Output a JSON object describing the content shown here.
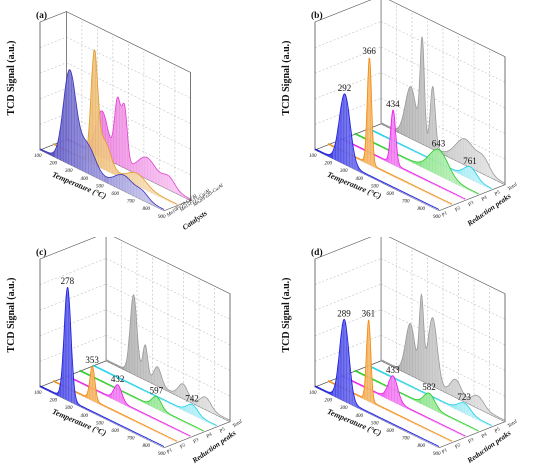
{
  "chart_data": [
    {
      "type": "area",
      "panel_label": "(a)",
      "ylabel": "TCD Signal (a.u.)",
      "xlabel": "Temperature (°C)",
      "zlabel": "Catalysts",
      "x_ticks": [
        "100",
        "200",
        "300",
        "400",
        "500",
        "600",
        "700",
        "800",
        "900"
      ],
      "lanes": [
        "Mn10Fe10-Cu/Al",
        "Mn15Fe15-Cu/Al",
        "Mn20Fe20-Cu/Al"
      ],
      "series": [
        {
          "name": "Mn10Fe10-Cu/Al",
          "color": "#3a33b8",
          "peaks": [
            {
              "x": 290,
              "h": 0.8,
              "w": 40
            },
            {
              "x": 400,
              "h": 0.25,
              "w": 55
            },
            {
              "x": 640,
              "h": 0.13,
              "w": 60
            },
            {
              "x": 760,
              "h": 0.06,
              "w": 40
            }
          ],
          "ylim_max": 1.0
        },
        {
          "name": "Mn15Fe15-Cu/Al",
          "color": "#e39a2a",
          "peaks": [
            {
              "x": 365,
              "h": 0.95,
              "w": 22
            },
            {
              "x": 430,
              "h": 0.25,
              "w": 40
            },
            {
              "x": 640,
              "h": 0.1,
              "w": 60
            }
          ],
          "ylim_max": 1.0
        },
        {
          "name": "Mn20Fe20-Cu/Al",
          "color": "#e23fd0",
          "peaks": [
            {
              "x": 330,
              "h": 0.4,
              "w": 40
            },
            {
              "x": 430,
              "h": 0.55,
              "w": 20
            },
            {
              "x": 475,
              "h": 0.5,
              "w": 18
            },
            {
              "x": 620,
              "h": 0.18,
              "w": 60
            },
            {
              "x": 760,
              "h": 0.1,
              "w": 40
            }
          ],
          "ylim_max": 1.0
        }
      ],
      "peak_labels": []
    },
    {
      "type": "area",
      "panel_label": "(b)",
      "ylabel": "TCD Signal (a.u.)",
      "xlabel": "Temperature (°C)",
      "zlabel": "Reduction peaks",
      "x_ticks": [
        "100",
        "200",
        "300",
        "400",
        "500",
        "600",
        "700",
        "800",
        "900"
      ],
      "lanes": [
        "P1",
        "P2",
        "P3",
        "P4",
        "P5",
        "Total"
      ],
      "series": [
        {
          "name": "P1",
          "color": "#1a1ae0",
          "peaks": [
            {
              "x": 292,
              "h": 0.62,
              "w": 35
            }
          ],
          "ylim_max": 1.0
        },
        {
          "name": "P2",
          "color": "#f08a0c",
          "peaks": [
            {
              "x": 366,
              "h": 0.95,
              "w": 14
            }
          ],
          "ylim_max": 1.0
        },
        {
          "name": "P3",
          "color": "#e81ae8",
          "peaks": [
            {
              "x": 434,
              "h": 0.48,
              "w": 16
            }
          ],
          "ylim_max": 1.0
        },
        {
          "name": "P4",
          "color": "#22cc22",
          "peaks": [
            {
              "x": 643,
              "h": 0.22,
              "w": 60
            }
          ],
          "ylim_max": 1.0
        },
        {
          "name": "P5",
          "color": "#1ad0e8",
          "peaks": [
            {
              "x": 761,
              "h": 0.1,
              "w": 40
            }
          ],
          "ylim_max": 1.0
        },
        {
          "name": "Total",
          "color": "#9a9a9a",
          "peaks": [
            {
              "x": 292,
              "h": 0.45,
              "w": 35
            },
            {
              "x": 366,
              "h": 0.9,
              "w": 14
            },
            {
              "x": 434,
              "h": 0.55,
              "w": 16
            },
            {
              "x": 643,
              "h": 0.22,
              "w": 60
            },
            {
              "x": 761,
              "h": 0.12,
              "w": 40
            }
          ],
          "ylim_max": 1.0
        }
      ],
      "peak_labels": [
        {
          "text": "292",
          "lane": 0,
          "x": 292
        },
        {
          "text": "366",
          "lane": 1,
          "x": 366
        },
        {
          "text": "434",
          "lane": 2,
          "x": 434
        },
        {
          "text": "643",
          "lane": 3,
          "x": 643
        },
        {
          "text": "761",
          "lane": 4,
          "x": 761
        }
      ]
    },
    {
      "type": "area",
      "panel_label": "(c)",
      "ylabel": "TCD Signal (a.u.)",
      "xlabel": "Temperature (°C)",
      "zlabel": "Reduction peaks",
      "x_ticks": [
        "100",
        "200",
        "300",
        "400",
        "500",
        "600",
        "700",
        "800",
        "900"
      ],
      "lanes": [
        "P1",
        "P2",
        "P3",
        "P4",
        "P5",
        "Total"
      ],
      "series": [
        {
          "name": "P1",
          "color": "#1a1ae0",
          "peaks": [
            {
              "x": 278,
              "h": 1.0,
              "w": 22
            }
          ],
          "ylim_max": 1.0
        },
        {
          "name": "P2",
          "color": "#f08a0c",
          "peaks": [
            {
              "x": 353,
              "h": 0.3,
              "w": 16
            }
          ],
          "ylim_max": 1.0
        },
        {
          "name": "P3",
          "color": "#e81ae8",
          "peaks": [
            {
              "x": 432,
              "h": 0.14,
              "w": 25
            }
          ],
          "ylim_max": 1.0
        },
        {
          "name": "P4",
          "color": "#22cc22",
          "peaks": [
            {
              "x": 597,
              "h": 0.1,
              "w": 30
            }
          ],
          "ylim_max": 1.0
        },
        {
          "name": "P5",
          "color": "#1ad0e8",
          "peaks": [
            {
              "x": 742,
              "h": 0.08,
              "w": 35
            }
          ],
          "ylim_max": 1.0
        },
        {
          "name": "Total",
          "color": "#9a9a9a",
          "peaks": [
            {
              "x": 278,
              "h": 0.7,
              "w": 22
            },
            {
              "x": 353,
              "h": 0.3,
              "w": 16
            },
            {
              "x": 432,
              "h": 0.16,
              "w": 25
            },
            {
              "x": 597,
              "h": 0.12,
              "w": 30
            },
            {
              "x": 742,
              "h": 0.1,
              "w": 35
            }
          ],
          "ylim_max": 1.0
        }
      ],
      "peak_labels": [
        {
          "text": "278",
          "lane": 0,
          "x": 278
        },
        {
          "text": "353",
          "lane": 1,
          "x": 353
        },
        {
          "text": "432",
          "lane": 2,
          "x": 432
        },
        {
          "text": "597",
          "lane": 3,
          "x": 597
        },
        {
          "text": "742",
          "lane": 4,
          "x": 742
        }
      ]
    },
    {
      "type": "area",
      "panel_label": "(d)",
      "ylabel": "TCD Signal (a.u.)",
      "xlabel": "Temperature (°C)",
      "zlabel": "Reduction peaks",
      "x_ticks": [
        "100",
        "200",
        "300",
        "400",
        "500",
        "600",
        "700",
        "800",
        "900"
      ],
      "lanes": [
        "P1",
        "P2",
        "P3",
        "P4",
        "P5",
        "Total"
      ],
      "series": [
        {
          "name": "P1",
          "color": "#1a1ae0",
          "peaks": [
            {
              "x": 289,
              "h": 0.72,
              "w": 30
            }
          ],
          "ylim_max": 1.0
        },
        {
          "name": "P2",
          "color": "#f08a0c",
          "peaks": [
            {
              "x": 361,
              "h": 0.72,
              "w": 14
            }
          ],
          "ylim_max": 1.0
        },
        {
          "name": "P3",
          "color": "#e81ae8",
          "peaks": [
            {
              "x": 433,
              "h": 0.22,
              "w": 30
            }
          ],
          "ylim_max": 1.0
        },
        {
          "name": "P4",
          "color": "#22cc22",
          "peaks": [
            {
              "x": 582,
              "h": 0.12,
              "w": 35
            }
          ],
          "ylim_max": 1.0
        },
        {
          "name": "P5",
          "color": "#1ad0e8",
          "peaks": [
            {
              "x": 723,
              "h": 0.08,
              "w": 40
            }
          ],
          "ylim_max": 1.0
        },
        {
          "name": "Total",
          "color": "#9a9a9a",
          "peaks": [
            {
              "x": 289,
              "h": 0.45,
              "w": 30
            },
            {
              "x": 361,
              "h": 0.7,
              "w": 14
            },
            {
              "x": 433,
              "h": 0.6,
              "w": 30
            },
            {
              "x": 582,
              "h": 0.15,
              "w": 35
            },
            {
              "x": 723,
              "h": 0.1,
              "w": 40
            }
          ],
          "ylim_max": 1.0
        }
      ],
      "peak_labels": [
        {
          "text": "289",
          "lane": 0,
          "x": 289
        },
        {
          "text": "361",
          "lane": 1,
          "x": 361
        },
        {
          "text": "433",
          "lane": 2,
          "x": 433
        },
        {
          "text": "582",
          "lane": 3,
          "x": 582
        },
        {
          "text": "723",
          "lane": 4,
          "x": 723
        }
      ]
    }
  ]
}
